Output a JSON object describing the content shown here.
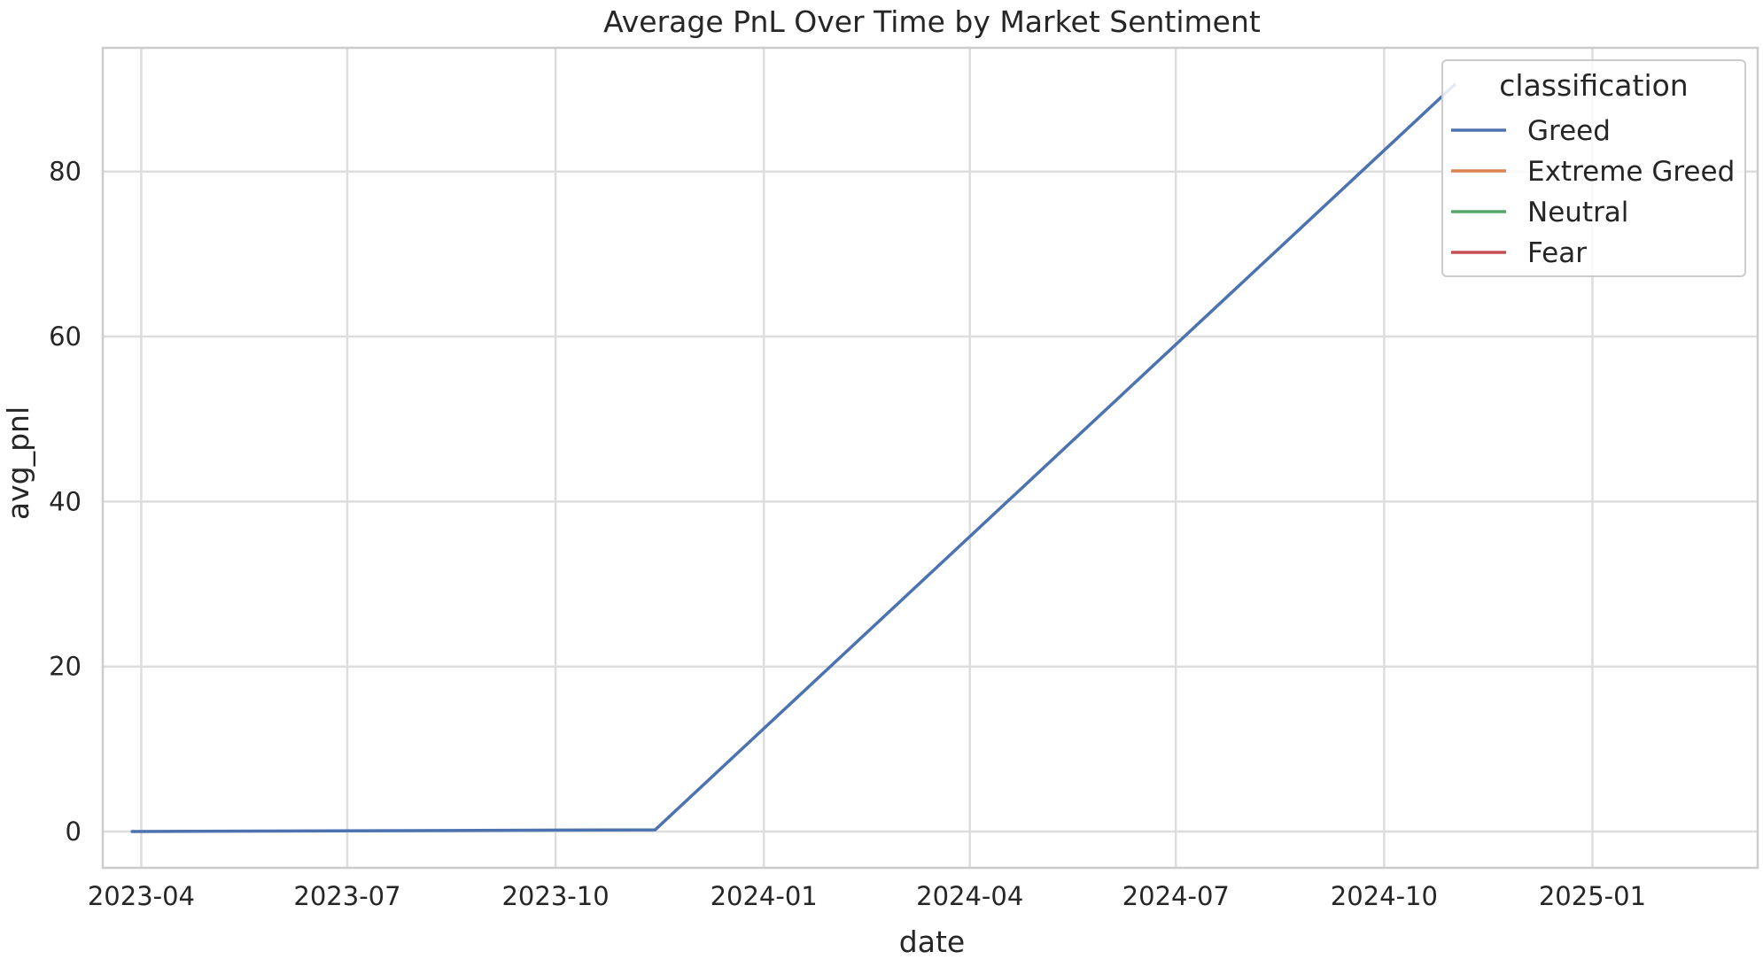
{
  "chart_data": {
    "type": "line",
    "title": "Average PnL Over Time by Market Sentiment",
    "xlabel": "date",
    "ylabel": "avg_pnl",
    "x_type": "date",
    "xlim": [
      "2023-03-15",
      "2025-03-15"
    ],
    "ylim": [
      -4.4,
      95
    ],
    "x_ticks": [
      "2023-04-01",
      "2023-07-01",
      "2023-10-01",
      "2024-01-01",
      "2024-04-01",
      "2024-07-01",
      "2024-10-01",
      "2025-01-01"
    ],
    "x_tick_labels": [
      "2023-04",
      "2023-07",
      "2023-10",
      "2024-01",
      "2024-04",
      "2024-07",
      "2024-10",
      "2025-01"
    ],
    "y_ticks": [
      0,
      20,
      40,
      60,
      80
    ],
    "y_tick_labels": [
      "0",
      "20",
      "40",
      "60",
      "80"
    ],
    "grid": true,
    "legend": {
      "title": "classification",
      "position": "top-right",
      "entries": [
        {
          "label": "Greed",
          "color": "#4c72b0"
        },
        {
          "label": "Extreme Greed",
          "color": "#dd8452"
        },
        {
          "label": "Neutral",
          "color": "#55a868"
        },
        {
          "label": "Fear",
          "color": "#c44e52"
        }
      ]
    },
    "series": [
      {
        "name": "Greed",
        "color": "#4c72b0",
        "points": [
          {
            "x": "2023-03-28",
            "y": 0.0
          },
          {
            "x": "2023-11-14",
            "y": 0.2
          },
          {
            "x": "2024-11-01",
            "y": 90.5
          }
        ]
      },
      {
        "name": "Extreme Greed",
        "color": "#dd8452",
        "points": []
      },
      {
        "name": "Neutral",
        "color": "#55a868",
        "points": []
      },
      {
        "name": "Fear",
        "color": "#c44e52",
        "points": []
      }
    ]
  }
}
